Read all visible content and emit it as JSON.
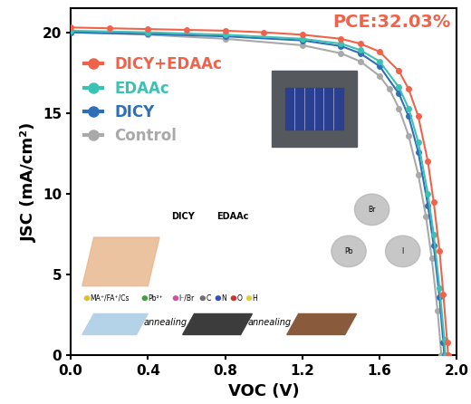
{
  "chart_data": {
    "type": "line",
    "x_label": "VOC (V)",
    "y_label": "JSC (mA/cm²)",
    "xlim": [
      0.0,
      2.0
    ],
    "xticks": [
      0.0,
      0.4,
      0.8,
      1.2,
      1.6,
      2.0
    ],
    "ylim": [
      0,
      21.5
    ],
    "yticks": [
      0,
      5,
      10,
      15,
      20
    ],
    "legend": "upper left",
    "marker": "o",
    "annotation": "PCE:32.03%",
    "inset_texts": [
      "DICY",
      "EDAAc",
      "annealing",
      "annealing",
      "MA⁺/FA⁺/Cs",
      "Pb²⁺",
      "I⁻/Br",
      "C",
      "N",
      "O",
      "H",
      "Br",
      "Pb",
      "I"
    ],
    "series": [
      {
        "name": "DICY+EDAAc",
        "color": "#f0634a",
        "x": [
          0,
          0.2,
          0.4,
          0.6,
          0.8,
          1.0,
          1.2,
          1.4,
          1.5,
          1.6,
          1.7,
          1.75,
          1.8,
          1.85,
          1.88,
          1.91,
          1.93,
          1.95,
          1.955
        ],
        "values": [
          20.3,
          20.25,
          20.2,
          20.15,
          20.1,
          20.0,
          19.85,
          19.6,
          19.3,
          18.8,
          17.6,
          16.5,
          14.8,
          12.0,
          9.5,
          6.5,
          3.8,
          0.8,
          0
        ]
      },
      {
        "name": "EDAAc",
        "color": "#3ec1b5",
        "x": [
          0,
          0.4,
          0.8,
          1.2,
          1.4,
          1.5,
          1.6,
          1.7,
          1.75,
          1.8,
          1.85,
          1.88,
          1.91,
          1.935,
          1.94
        ],
        "values": [
          20.1,
          20.0,
          19.85,
          19.6,
          19.3,
          18.9,
          18.2,
          16.6,
          15.3,
          13.2,
          10.0,
          7.5,
          4.2,
          1.0,
          0
        ]
      },
      {
        "name": "DICY",
        "color": "#2f6fb5",
        "x": [
          0,
          0.4,
          0.8,
          1.2,
          1.4,
          1.5,
          1.6,
          1.7,
          1.75,
          1.8,
          1.85,
          1.88,
          1.91,
          1.93,
          1.935
        ],
        "values": [
          20.0,
          19.9,
          19.75,
          19.5,
          19.15,
          18.7,
          17.9,
          16.2,
          14.8,
          12.6,
          9.3,
          6.8,
          3.6,
          0.8,
          0
        ]
      },
      {
        "name": "Control",
        "color": "#a9a9a9",
        "x": [
          0,
          0.4,
          0.8,
          1.2,
          1.4,
          1.5,
          1.6,
          1.65,
          1.7,
          1.75,
          1.8,
          1.84,
          1.87,
          1.9,
          1.92
        ],
        "values": [
          20.0,
          19.85,
          19.6,
          19.2,
          18.7,
          18.2,
          17.3,
          16.5,
          15.3,
          13.6,
          11.2,
          8.6,
          6.0,
          2.8,
          0
        ]
      }
    ]
  }
}
